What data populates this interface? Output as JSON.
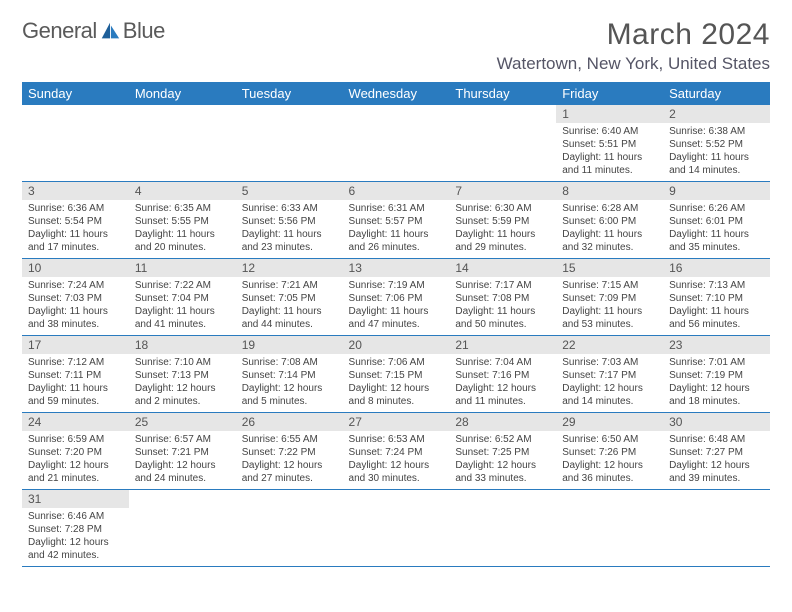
{
  "brand": {
    "part1": "General",
    "part2": "Blue"
  },
  "title": "March 2024",
  "location": "Watertown, New York, United States",
  "headers": [
    "Sunday",
    "Monday",
    "Tuesday",
    "Wednesday",
    "Thursday",
    "Friday",
    "Saturday"
  ],
  "colors": {
    "header_bg": "#2a7bbf",
    "header_text": "#ffffff",
    "daynum_bg": "#e6e6e6",
    "row_border": "#2a7bbf",
    "title_color": "#555555",
    "text_color": "#444444"
  },
  "typography": {
    "title_fontsize": 30,
    "header_fontsize": 13,
    "daynum_fontsize": 12,
    "cell_fontsize": 10
  },
  "grid": {
    "cols": 7,
    "rows": 6,
    "first_day_col": 5,
    "days_in_month": 31
  },
  "days": {
    "1": {
      "sunrise": "6:40 AM",
      "sunset": "5:51 PM",
      "daylight": "11 hours and 11 minutes."
    },
    "2": {
      "sunrise": "6:38 AM",
      "sunset": "5:52 PM",
      "daylight": "11 hours and 14 minutes."
    },
    "3": {
      "sunrise": "6:36 AM",
      "sunset": "5:54 PM",
      "daylight": "11 hours and 17 minutes."
    },
    "4": {
      "sunrise": "6:35 AM",
      "sunset": "5:55 PM",
      "daylight": "11 hours and 20 minutes."
    },
    "5": {
      "sunrise": "6:33 AM",
      "sunset": "5:56 PM",
      "daylight": "11 hours and 23 minutes."
    },
    "6": {
      "sunrise": "6:31 AM",
      "sunset": "5:57 PM",
      "daylight": "11 hours and 26 minutes."
    },
    "7": {
      "sunrise": "6:30 AM",
      "sunset": "5:59 PM",
      "daylight": "11 hours and 29 minutes."
    },
    "8": {
      "sunrise": "6:28 AM",
      "sunset": "6:00 PM",
      "daylight": "11 hours and 32 minutes."
    },
    "9": {
      "sunrise": "6:26 AM",
      "sunset": "6:01 PM",
      "daylight": "11 hours and 35 minutes."
    },
    "10": {
      "sunrise": "7:24 AM",
      "sunset": "7:03 PM",
      "daylight": "11 hours and 38 minutes."
    },
    "11": {
      "sunrise": "7:22 AM",
      "sunset": "7:04 PM",
      "daylight": "11 hours and 41 minutes."
    },
    "12": {
      "sunrise": "7:21 AM",
      "sunset": "7:05 PM",
      "daylight": "11 hours and 44 minutes."
    },
    "13": {
      "sunrise": "7:19 AM",
      "sunset": "7:06 PM",
      "daylight": "11 hours and 47 minutes."
    },
    "14": {
      "sunrise": "7:17 AM",
      "sunset": "7:08 PM",
      "daylight": "11 hours and 50 minutes."
    },
    "15": {
      "sunrise": "7:15 AM",
      "sunset": "7:09 PM",
      "daylight": "11 hours and 53 minutes."
    },
    "16": {
      "sunrise": "7:13 AM",
      "sunset": "7:10 PM",
      "daylight": "11 hours and 56 minutes."
    },
    "17": {
      "sunrise": "7:12 AM",
      "sunset": "7:11 PM",
      "daylight": "11 hours and 59 minutes."
    },
    "18": {
      "sunrise": "7:10 AM",
      "sunset": "7:13 PM",
      "daylight": "12 hours and 2 minutes."
    },
    "19": {
      "sunrise": "7:08 AM",
      "sunset": "7:14 PM",
      "daylight": "12 hours and 5 minutes."
    },
    "20": {
      "sunrise": "7:06 AM",
      "sunset": "7:15 PM",
      "daylight": "12 hours and 8 minutes."
    },
    "21": {
      "sunrise": "7:04 AM",
      "sunset": "7:16 PM",
      "daylight": "12 hours and 11 minutes."
    },
    "22": {
      "sunrise": "7:03 AM",
      "sunset": "7:17 PM",
      "daylight": "12 hours and 14 minutes."
    },
    "23": {
      "sunrise": "7:01 AM",
      "sunset": "7:19 PM",
      "daylight": "12 hours and 18 minutes."
    },
    "24": {
      "sunrise": "6:59 AM",
      "sunset": "7:20 PM",
      "daylight": "12 hours and 21 minutes."
    },
    "25": {
      "sunrise": "6:57 AM",
      "sunset": "7:21 PM",
      "daylight": "12 hours and 24 minutes."
    },
    "26": {
      "sunrise": "6:55 AM",
      "sunset": "7:22 PM",
      "daylight": "12 hours and 27 minutes."
    },
    "27": {
      "sunrise": "6:53 AM",
      "sunset": "7:24 PM",
      "daylight": "12 hours and 30 minutes."
    },
    "28": {
      "sunrise": "6:52 AM",
      "sunset": "7:25 PM",
      "daylight": "12 hours and 33 minutes."
    },
    "29": {
      "sunrise": "6:50 AM",
      "sunset": "7:26 PM",
      "daylight": "12 hours and 36 minutes."
    },
    "30": {
      "sunrise": "6:48 AM",
      "sunset": "7:27 PM",
      "daylight": "12 hours and 39 minutes."
    },
    "31": {
      "sunrise": "6:46 AM",
      "sunset": "7:28 PM",
      "daylight": "12 hours and 42 minutes."
    }
  }
}
